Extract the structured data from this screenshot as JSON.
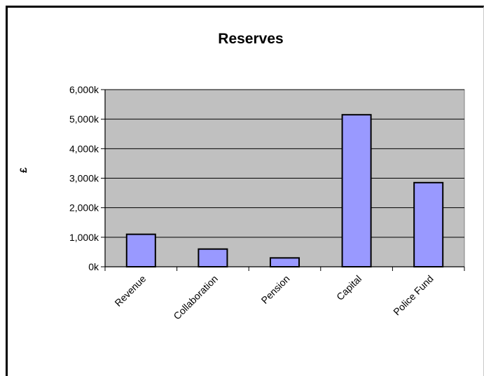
{
  "chart_data": {
    "type": "bar",
    "title": "Reserves",
    "ylabel": "£",
    "xlabel": "",
    "categories": [
      "Revenue",
      "Collaboration",
      "Pension",
      "Capital",
      "Police Fund"
    ],
    "values": [
      1100,
      600,
      300,
      5150,
      2850
    ],
    "ylim": [
      0,
      6000
    ],
    "yticks": [
      0,
      1000,
      2000,
      3000,
      4000,
      5000,
      6000
    ],
    "ytick_labels": [
      "0k",
      "1,000k",
      "2,000k",
      "3,000k",
      "4,000k",
      "5,000k",
      "6,000k"
    ],
    "grid": true,
    "legend": "none",
    "colors": {
      "bar": "#9999ff",
      "plot_bg": "#c0c0c0",
      "bar_edge": "#000000"
    }
  }
}
